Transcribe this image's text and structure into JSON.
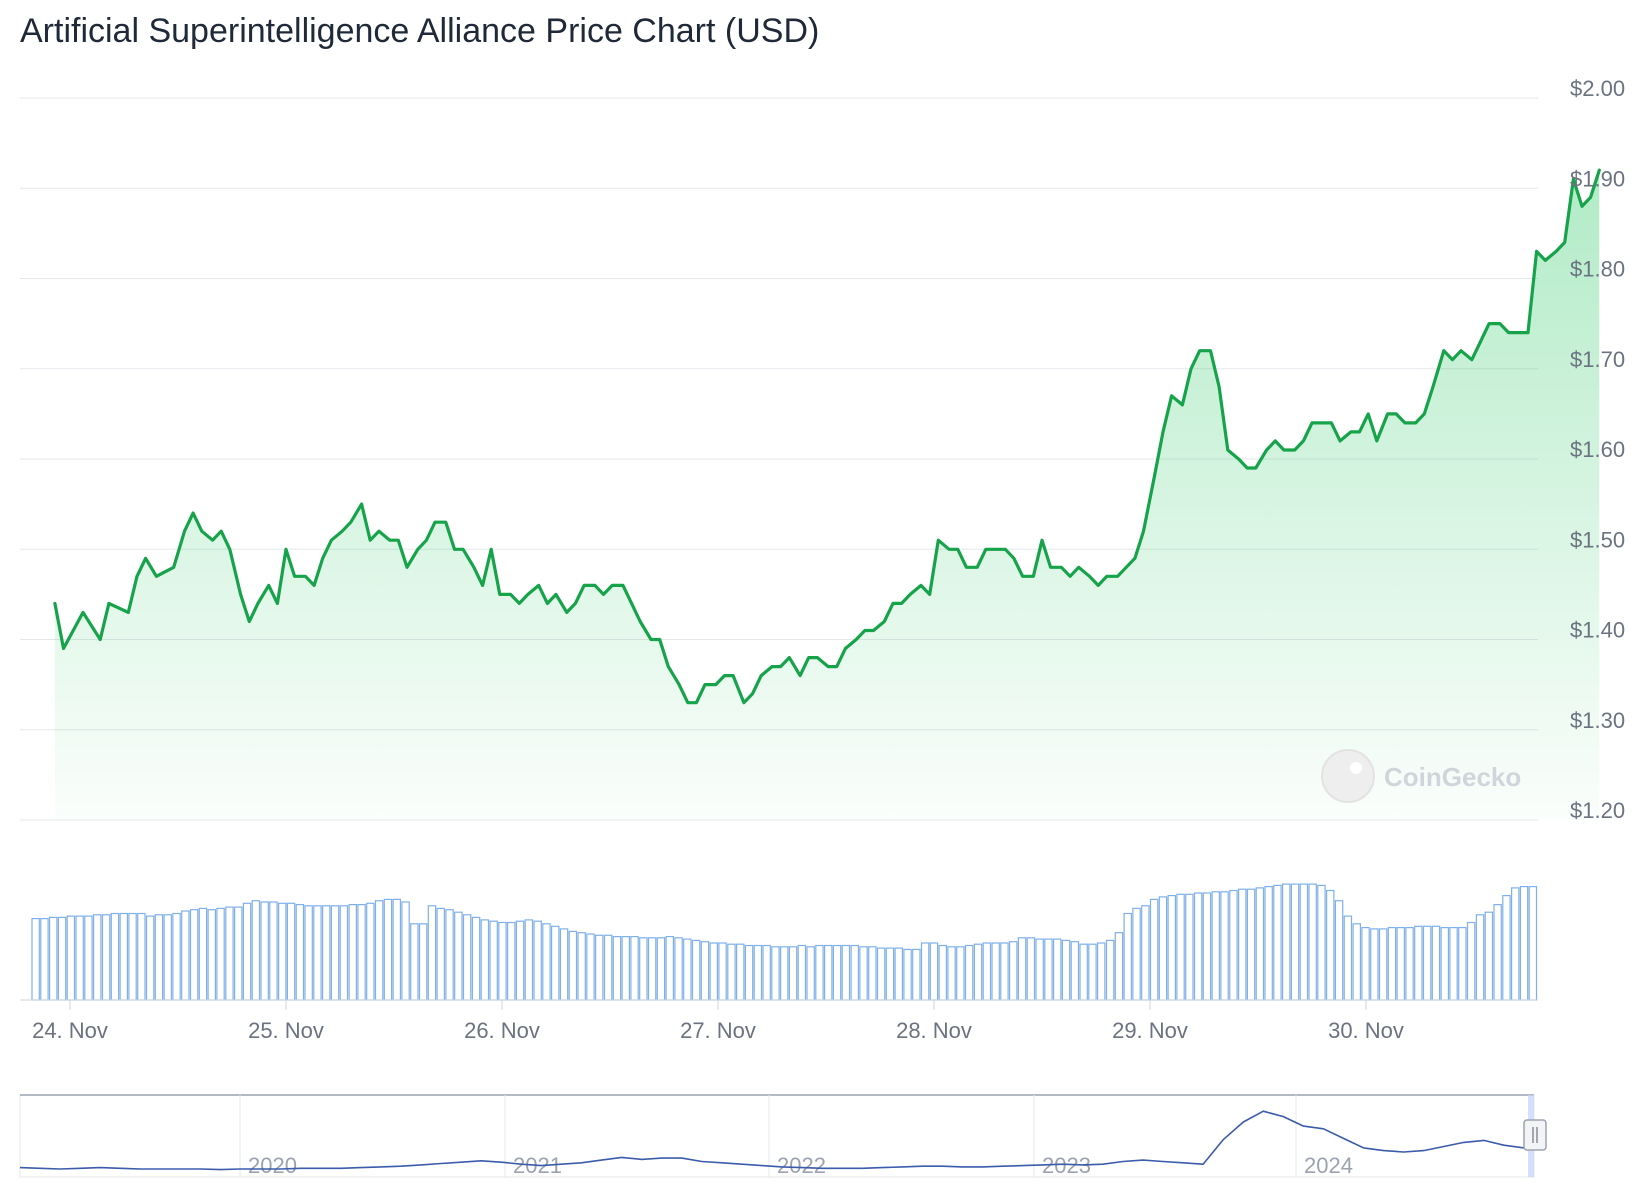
{
  "chart_data": {
    "type": "area",
    "title": "Artificial Superintelligence Alliance Price Chart (USD)",
    "currency": "USD",
    "y_axis": {
      "min": 1.2,
      "max": 2.0,
      "ticks": [
        2.0,
        1.9,
        1.8,
        1.7,
        1.6,
        1.5,
        1.4,
        1.3,
        1.2
      ],
      "tick_labels": [
        "$2.00",
        "$1.90",
        "$1.80",
        "$1.70",
        "$1.60",
        "$1.50",
        "$1.40",
        "$1.30",
        "$1.20"
      ]
    },
    "x_axis": {
      "day_start": 23.93,
      "day_end": 30.92,
      "ticks": [
        24,
        25,
        26,
        27,
        28,
        29,
        30
      ],
      "tick_labels": [
        "24. Nov",
        "25. Nov",
        "26. Nov",
        "27. Nov",
        "28. Nov",
        "29. Nov",
        "30. Nov"
      ]
    },
    "price_series": {
      "name": "Price",
      "color": "#16a34a",
      "fill_color": "#22c55e",
      "points": [
        [
          23.93,
          1.44
        ],
        [
          23.97,
          1.39
        ],
        [
          24.06,
          1.43
        ],
        [
          24.14,
          1.4
        ],
        [
          24.18,
          1.44
        ],
        [
          24.27,
          1.43
        ],
        [
          24.31,
          1.47
        ],
        [
          24.35,
          1.49
        ],
        [
          24.4,
          1.47
        ],
        [
          24.48,
          1.48
        ],
        [
          24.53,
          1.52
        ],
        [
          24.57,
          1.54
        ],
        [
          24.61,
          1.52
        ],
        [
          24.66,
          1.51
        ],
        [
          24.7,
          1.52
        ],
        [
          24.74,
          1.5
        ],
        [
          24.79,
          1.45
        ],
        [
          24.83,
          1.42
        ],
        [
          24.87,
          1.44
        ],
        [
          24.92,
          1.46
        ],
        [
          24.96,
          1.44
        ],
        [
          25.0,
          1.5
        ],
        [
          25.04,
          1.47
        ],
        [
          25.09,
          1.47
        ],
        [
          25.13,
          1.46
        ],
        [
          25.17,
          1.49
        ],
        [
          25.21,
          1.51
        ],
        [
          25.26,
          1.52
        ],
        [
          25.3,
          1.53
        ],
        [
          25.35,
          1.55
        ],
        [
          25.39,
          1.51
        ],
        [
          25.43,
          1.52
        ],
        [
          25.48,
          1.51
        ],
        [
          25.52,
          1.51
        ],
        [
          25.56,
          1.48
        ],
        [
          25.61,
          1.5
        ],
        [
          25.65,
          1.51
        ],
        [
          25.69,
          1.53
        ],
        [
          25.74,
          1.53
        ],
        [
          25.78,
          1.5
        ],
        [
          25.82,
          1.5
        ],
        [
          25.87,
          1.48
        ],
        [
          25.91,
          1.46
        ],
        [
          25.95,
          1.5
        ],
        [
          25.99,
          1.45
        ],
        [
          26.04,
          1.45
        ],
        [
          26.08,
          1.44
        ],
        [
          26.12,
          1.45
        ],
        [
          26.17,
          1.46
        ],
        [
          26.21,
          1.44
        ],
        [
          26.25,
          1.45
        ],
        [
          26.3,
          1.43
        ],
        [
          26.34,
          1.44
        ],
        [
          26.38,
          1.46
        ],
        [
          26.43,
          1.46
        ],
        [
          26.47,
          1.45
        ],
        [
          26.51,
          1.46
        ],
        [
          26.56,
          1.46
        ],
        [
          26.6,
          1.44
        ],
        [
          26.64,
          1.42
        ],
        [
          26.69,
          1.4
        ],
        [
          26.73,
          1.4
        ],
        [
          26.77,
          1.37
        ],
        [
          26.82,
          1.35
        ],
        [
          26.86,
          1.33
        ],
        [
          26.9,
          1.33
        ],
        [
          26.94,
          1.35
        ],
        [
          26.99,
          1.35
        ],
        [
          27.03,
          1.36
        ],
        [
          27.07,
          1.36
        ],
        [
          27.12,
          1.33
        ],
        [
          27.16,
          1.34
        ],
        [
          27.2,
          1.36
        ],
        [
          27.25,
          1.37
        ],
        [
          27.29,
          1.37
        ],
        [
          27.33,
          1.38
        ],
        [
          27.38,
          1.36
        ],
        [
          27.42,
          1.38
        ],
        [
          27.46,
          1.38
        ],
        [
          27.51,
          1.37
        ],
        [
          27.55,
          1.37
        ],
        [
          27.59,
          1.39
        ],
        [
          27.64,
          1.4
        ],
        [
          27.68,
          1.41
        ],
        [
          27.72,
          1.41
        ],
        [
          27.77,
          1.42
        ],
        [
          27.81,
          1.44
        ],
        [
          27.85,
          1.44
        ],
        [
          27.89,
          1.45
        ],
        [
          27.94,
          1.46
        ],
        [
          27.98,
          1.45
        ],
        [
          28.02,
          1.51
        ],
        [
          28.07,
          1.5
        ],
        [
          28.11,
          1.5
        ],
        [
          28.15,
          1.48
        ],
        [
          28.2,
          1.48
        ],
        [
          28.24,
          1.5
        ],
        [
          28.28,
          1.5
        ],
        [
          28.33,
          1.5
        ],
        [
          28.37,
          1.49
        ],
        [
          28.41,
          1.47
        ],
        [
          28.46,
          1.47
        ],
        [
          28.5,
          1.51
        ],
        [
          28.54,
          1.48
        ],
        [
          28.59,
          1.48
        ],
        [
          28.63,
          1.47
        ],
        [
          28.67,
          1.48
        ],
        [
          28.72,
          1.47
        ],
        [
          28.76,
          1.46
        ],
        [
          28.8,
          1.47
        ],
        [
          28.85,
          1.47
        ],
        [
          28.89,
          1.48
        ],
        [
          28.93,
          1.49
        ],
        [
          28.97,
          1.52
        ],
        [
          29.02,
          1.58
        ],
        [
          29.06,
          1.63
        ],
        [
          29.1,
          1.67
        ],
        [
          29.15,
          1.66
        ],
        [
          29.19,
          1.7
        ],
        [
          29.23,
          1.72
        ],
        [
          29.28,
          1.72
        ],
        [
          29.32,
          1.68
        ],
        [
          29.36,
          1.61
        ],
        [
          29.41,
          1.6
        ],
        [
          29.45,
          1.59
        ],
        [
          29.49,
          1.59
        ],
        [
          29.54,
          1.61
        ],
        [
          29.58,
          1.62
        ],
        [
          29.62,
          1.61
        ],
        [
          29.67,
          1.61
        ],
        [
          29.71,
          1.62
        ],
        [
          29.75,
          1.64
        ],
        [
          29.8,
          1.64
        ],
        [
          29.84,
          1.64
        ],
        [
          29.88,
          1.62
        ],
        [
          29.93,
          1.63
        ],
        [
          29.97,
          1.63
        ],
        [
          30.01,
          1.65
        ],
        [
          30.05,
          1.62
        ],
        [
          30.1,
          1.65
        ],
        [
          30.14,
          1.65
        ],
        [
          30.18,
          1.64
        ],
        [
          30.23,
          1.64
        ],
        [
          30.27,
          1.65
        ],
        [
          30.31,
          1.68
        ],
        [
          30.36,
          1.72
        ],
        [
          30.4,
          1.71
        ],
        [
          30.44,
          1.72
        ],
        [
          30.49,
          1.71
        ],
        [
          30.53,
          1.73
        ],
        [
          30.57,
          1.75
        ],
        [
          30.62,
          1.75
        ],
        [
          30.66,
          1.74
        ],
        [
          30.7,
          1.74
        ],
        [
          30.75,
          1.74
        ],
        [
          30.79,
          1.83
        ],
        [
          30.83,
          1.82
        ],
        [
          30.88,
          1.83
        ],
        [
          30.92,
          1.84
        ],
        [
          30.96,
          1.91
        ],
        [
          31.0,
          1.88
        ],
        [
          31.04,
          1.89
        ],
        [
          31.08,
          1.92
        ]
      ]
    },
    "volume_series": {
      "name": "Volume",
      "color": "#7fb0ea",
      "relative_values": [
        0.62,
        0.62,
        0.63,
        0.63,
        0.64,
        0.64,
        0.64,
        0.65,
        0.65,
        0.66,
        0.66,
        0.66,
        0.66,
        0.64,
        0.65,
        0.65,
        0.66,
        0.68,
        0.69,
        0.7,
        0.69,
        0.7,
        0.71,
        0.71,
        0.74,
        0.76,
        0.75,
        0.75,
        0.74,
        0.74,
        0.73,
        0.72,
        0.72,
        0.72,
        0.72,
        0.72,
        0.73,
        0.73,
        0.74,
        0.76,
        0.77,
        0.77,
        0.75,
        0.58,
        0.58,
        0.72,
        0.7,
        0.69,
        0.67,
        0.65,
        0.63,
        0.61,
        0.6,
        0.59,
        0.59,
        0.6,
        0.61,
        0.6,
        0.58,
        0.56,
        0.54,
        0.52,
        0.51,
        0.5,
        0.49,
        0.49,
        0.48,
        0.48,
        0.48,
        0.47,
        0.47,
        0.47,
        0.48,
        0.47,
        0.46,
        0.45,
        0.44,
        0.43,
        0.43,
        0.42,
        0.42,
        0.41,
        0.41,
        0.41,
        0.4,
        0.4,
        0.4,
        0.41,
        0.4,
        0.41,
        0.41,
        0.41,
        0.41,
        0.41,
        0.4,
        0.4,
        0.39,
        0.39,
        0.39,
        0.38,
        0.38,
        0.43,
        0.43,
        0.41,
        0.4,
        0.4,
        0.41,
        0.42,
        0.43,
        0.43,
        0.43,
        0.44,
        0.47,
        0.47,
        0.46,
        0.46,
        0.46,
        0.45,
        0.44,
        0.42,
        0.42,
        0.43,
        0.45,
        0.51,
        0.66,
        0.7,
        0.72,
        0.77,
        0.79,
        0.8,
        0.81,
        0.81,
        0.82,
        0.82,
        0.83,
        0.83,
        0.84,
        0.85,
        0.85,
        0.86,
        0.87,
        0.88,
        0.89,
        0.89,
        0.89,
        0.89,
        0.88,
        0.84,
        0.76,
        0.64,
        0.58,
        0.55,
        0.54,
        0.54,
        0.55,
        0.55,
        0.55,
        0.56,
        0.56,
        0.56,
        0.55,
        0.55,
        0.55,
        0.59,
        0.65,
        0.67,
        0.73,
        0.8,
        0.86,
        0.87,
        0.87
      ]
    },
    "navigator": {
      "year_labels": [
        "2020",
        "2021",
        "2022",
        "2023",
        "2024"
      ],
      "line_color": "#3b5bab",
      "relative_values": [
        0.05,
        0.04,
        0.03,
        0.04,
        0.05,
        0.04,
        0.03,
        0.03,
        0.03,
        0.03,
        0.02,
        0.03,
        0.03,
        0.03,
        0.04,
        0.04,
        0.04,
        0.05,
        0.06,
        0.07,
        0.09,
        0.11,
        0.13,
        0.15,
        0.13,
        0.1,
        0.08,
        0.1,
        0.12,
        0.16,
        0.2,
        0.17,
        0.19,
        0.19,
        0.14,
        0.12,
        0.1,
        0.08,
        0.06,
        0.05,
        0.04,
        0.04,
        0.04,
        0.05,
        0.06,
        0.07,
        0.07,
        0.06,
        0.06,
        0.07,
        0.08,
        0.09,
        0.1,
        0.09,
        0.1,
        0.14,
        0.16,
        0.14,
        0.12,
        0.1,
        0.46,
        0.72,
        0.88,
        0.8,
        0.66,
        0.62,
        0.48,
        0.34,
        0.3,
        0.28,
        0.3,
        0.36,
        0.42,
        0.45,
        0.38,
        0.34
      ]
    },
    "watermark": "CoinGecko",
    "grid": true
  }
}
